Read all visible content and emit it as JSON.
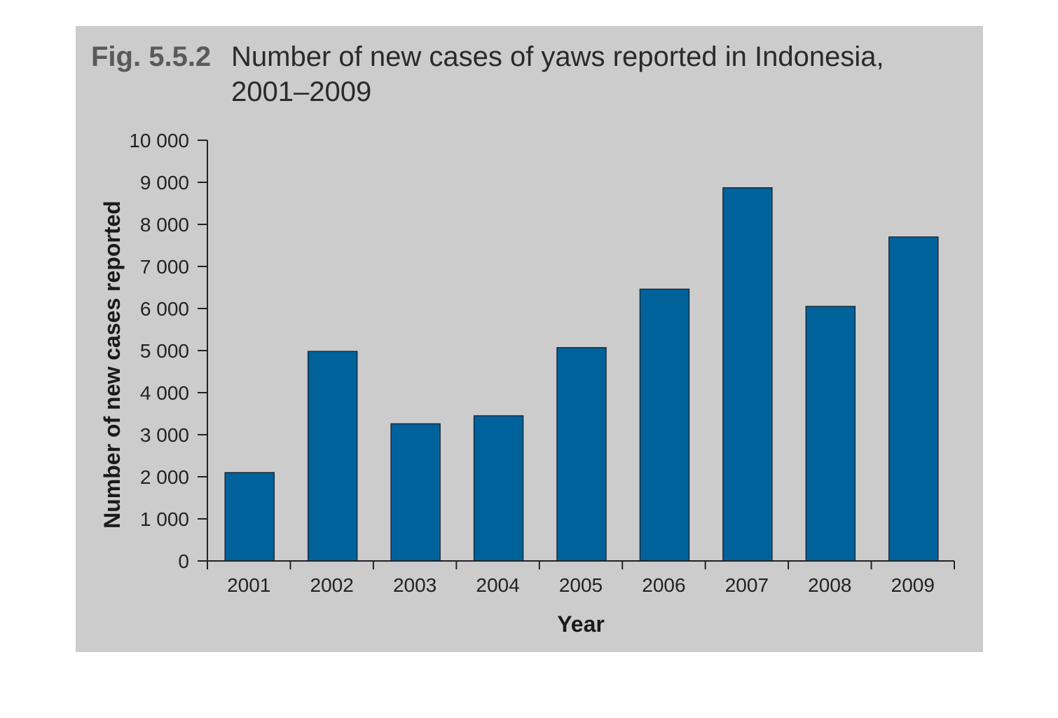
{
  "figure": {
    "number": "Fig. 5.5.2",
    "title_line1": "Number of new cases of yaws reported in Indonesia,",
    "title_line2": "2001–2009"
  },
  "colors": {
    "panel_bg": "#cccccc",
    "bar_fill": "#00629b",
    "bar_stroke": "#1a2a3a",
    "axis": "#222222"
  },
  "chart_data": {
    "type": "bar",
    "categories": [
      "2001",
      "2002",
      "2003",
      "2004",
      "2005",
      "2006",
      "2007",
      "2008",
      "2009"
    ],
    "values": [
      2100,
      4980,
      3260,
      3450,
      5070,
      6460,
      8870,
      6050,
      7700
    ],
    "ylabel": "Number of new cases reported",
    "xlabel": "Year",
    "ylim": [
      0,
      10000
    ],
    "yticks": [
      0,
      1000,
      2000,
      3000,
      4000,
      5000,
      6000,
      7000,
      8000,
      9000,
      10000
    ],
    "ytick_labels": [
      "0",
      "1 000",
      "2 000",
      "3 000",
      "4 000",
      "5 000",
      "6 000",
      "7 000",
      "8 000",
      "9 000",
      "10 000"
    ],
    "grid": false,
    "legend": "none"
  }
}
